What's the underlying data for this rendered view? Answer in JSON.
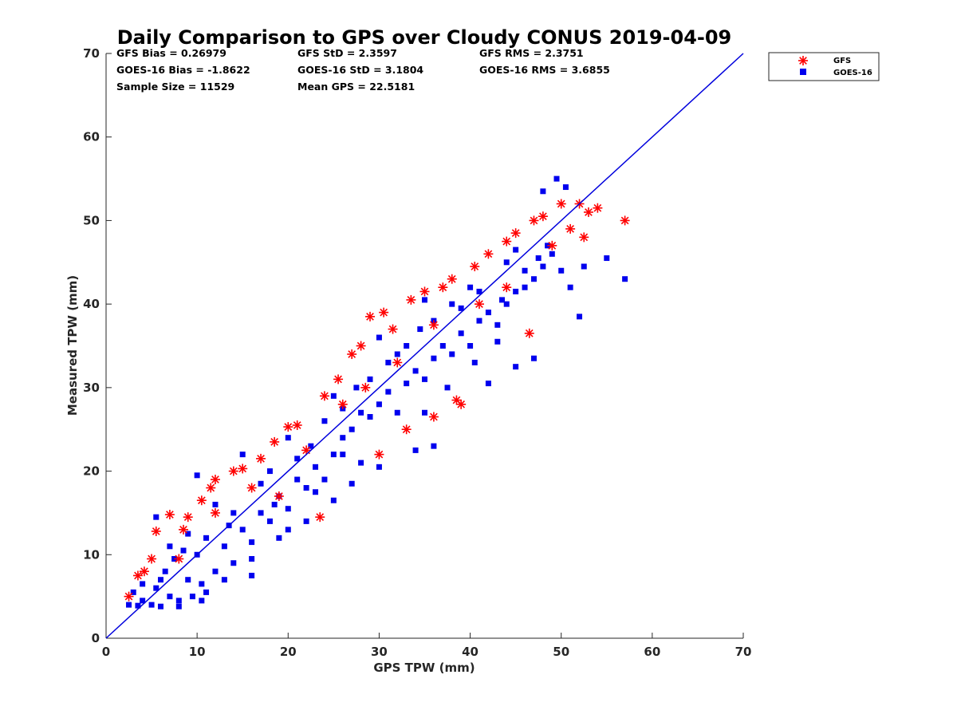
{
  "chart_data": {
    "type": "scatter",
    "title": "Daily Comparison to GPS over Cloudy CONUS 2019-04-09",
    "xlabel": "GPS TPW (mm)",
    "ylabel": "Measured TPW (mm)",
    "xlim": [
      0,
      70
    ],
    "ylim": [
      0,
      70
    ],
    "xticks": [
      "0",
      "10",
      "20",
      "30",
      "40",
      "50",
      "60",
      "70"
    ],
    "yticks": [
      "0",
      "10",
      "20",
      "30",
      "40",
      "50",
      "60",
      "70"
    ],
    "grid": false,
    "legend_position": "outside-top-right",
    "reference_line": {
      "x": [
        0,
        70
      ],
      "y": [
        0,
        70
      ],
      "color": "#0000dd"
    },
    "stats": {
      "gfs_bias": "GFS Bias = 0.26979",
      "gfs_std": "GFS StD = 2.3597",
      "gfs_rms": "GFS RMS = 2.3751",
      "goes_bias": "GOES-16 Bias = -1.8622",
      "goes_std": "GOES-16 StD = 3.1804",
      "goes_rms": "GOES-16 RMS = 3.6855",
      "sample_size": "Sample Size = 11529",
      "mean_gps": "Mean GPS = 22.5181"
    },
    "series": [
      {
        "name": "GFS",
        "marker": "asterisk",
        "color": "#ff0000",
        "points": [
          [
            2.5,
            5.0
          ],
          [
            3.5,
            7.5
          ],
          [
            4.2,
            8.0
          ],
          [
            5.0,
            9.5
          ],
          [
            5.5,
            12.8
          ],
          [
            7.0,
            14.8
          ],
          [
            8.5,
            13.0
          ],
          [
            9.0,
            14.5
          ],
          [
            10.5,
            16.5
          ],
          [
            11.5,
            18.0
          ],
          [
            12.0,
            19.0
          ],
          [
            14.0,
            20.0
          ],
          [
            15.0,
            20.3
          ],
          [
            17.0,
            21.5
          ],
          [
            18.5,
            23.5
          ],
          [
            20.0,
            25.3
          ],
          [
            21.0,
            25.5
          ],
          [
            23.5,
            14.5
          ],
          [
            24.0,
            29.0
          ],
          [
            25.5,
            31.0
          ],
          [
            27.0,
            34.0
          ],
          [
            28.0,
            35.0
          ],
          [
            29.0,
            38.5
          ],
          [
            30.0,
            22.0
          ],
          [
            30.5,
            39.0
          ],
          [
            31.5,
            37.0
          ],
          [
            33.0,
            25.0
          ],
          [
            33.5,
            40.5
          ],
          [
            35.0,
            41.5
          ],
          [
            36.0,
            26.5
          ],
          [
            37.0,
            42.0
          ],
          [
            38.0,
            43.0
          ],
          [
            38.5,
            28.5
          ],
          [
            39.0,
            28.0
          ],
          [
            40.5,
            44.5
          ],
          [
            42.0,
            46.0
          ],
          [
            44.0,
            47.5
          ],
          [
            45.0,
            48.5
          ],
          [
            46.5,
            36.5
          ],
          [
            47.0,
            50.0
          ],
          [
            48.0,
            50.5
          ],
          [
            49.0,
            47.0
          ],
          [
            50.0,
            52.0
          ],
          [
            51.0,
            49.0
          ],
          [
            52.0,
            52.0
          ],
          [
            52.5,
            48.0
          ],
          [
            53.0,
            51.0
          ],
          [
            54.0,
            51.5
          ],
          [
            57.0,
            50.0
          ],
          [
            12.0,
            15.0
          ],
          [
            16.0,
            18.0
          ],
          [
            22.0,
            22.5
          ],
          [
            26.0,
            28.0
          ],
          [
            32.0,
            33.0
          ],
          [
            36.0,
            37.5
          ],
          [
            41.0,
            40.0
          ],
          [
            44.0,
            42.0
          ],
          [
            8.0,
            9.5
          ],
          [
            19.0,
            17.0
          ],
          [
            28.5,
            30.0
          ]
        ]
      },
      {
        "name": "GOES-16",
        "marker": "square",
        "color": "#0000ee",
        "points": [
          [
            2.5,
            4.0
          ],
          [
            3.0,
            5.5
          ],
          [
            4.0,
            4.5
          ],
          [
            5.0,
            4.0
          ],
          [
            5.5,
            6.0
          ],
          [
            6.0,
            3.8
          ],
          [
            6.5,
            8.0
          ],
          [
            7.0,
            5.0
          ],
          [
            7.5,
            9.5
          ],
          [
            8.0,
            4.5
          ],
          [
            9.0,
            7.0
          ],
          [
            9.5,
            5.0
          ],
          [
            10.0,
            10.0
          ],
          [
            10.5,
            6.5
          ],
          [
            11.0,
            12.0
          ],
          [
            12.0,
            8.0
          ],
          [
            13.0,
            11.0
          ],
          [
            14.0,
            9.0
          ],
          [
            15.0,
            13.0
          ],
          [
            16.0,
            11.5
          ],
          [
            17.0,
            15.0
          ],
          [
            18.0,
            14.0
          ],
          [
            19.0,
            17.0
          ],
          [
            20.0,
            15.5
          ],
          [
            21.0,
            19.0
          ],
          [
            22.0,
            18.0
          ],
          [
            23.0,
            20.5
          ],
          [
            24.0,
            19.0
          ],
          [
            25.0,
            22.0
          ],
          [
            26.0,
            24.0
          ],
          [
            27.0,
            25.0
          ],
          [
            28.0,
            27.0
          ],
          [
            29.0,
            26.5
          ],
          [
            30.0,
            28.0
          ],
          [
            31.0,
            29.5
          ],
          [
            32.0,
            27.0
          ],
          [
            33.0,
            30.5
          ],
          [
            34.0,
            32.0
          ],
          [
            35.0,
            31.0
          ],
          [
            36.0,
            33.5
          ],
          [
            37.0,
            35.0
          ],
          [
            38.0,
            34.0
          ],
          [
            39.0,
            36.5
          ],
          [
            40.0,
            35.0
          ],
          [
            41.0,
            38.0
          ],
          [
            42.0,
            39.0
          ],
          [
            43.0,
            37.5
          ],
          [
            44.0,
            40.0
          ],
          [
            45.0,
            41.5
          ],
          [
            46.0,
            42.0
          ],
          [
            47.0,
            43.0
          ],
          [
            48.0,
            44.5
          ],
          [
            49.0,
            46.0
          ],
          [
            50.0,
            44.0
          ],
          [
            50.5,
            54.0
          ],
          [
            49.5,
            55.0
          ],
          [
            48.0,
            53.5
          ],
          [
            51.0,
            42.0
          ],
          [
            52.5,
            44.5
          ],
          [
            55.0,
            45.5
          ],
          [
            57.0,
            43.0
          ],
          [
            52.0,
            38.5
          ],
          [
            47.0,
            33.5
          ],
          [
            45.0,
            32.5
          ],
          [
            43.0,
            35.5
          ],
          [
            36.0,
            23.0
          ],
          [
            34.0,
            22.5
          ],
          [
            30.0,
            20.5
          ],
          [
            27.0,
            18.5
          ],
          [
            25.0,
            16.5
          ],
          [
            22.0,
            14.0
          ],
          [
            19.0,
            12.0
          ],
          [
            16.0,
            9.5
          ],
          [
            13.0,
            7.0
          ],
          [
            10.5,
            4.5
          ],
          [
            8.0,
            3.8
          ],
          [
            5.5,
            14.5
          ],
          [
            10.0,
            19.5
          ],
          [
            15.0,
            22.0
          ],
          [
            20.0,
            24.0
          ],
          [
            25.0,
            29.0
          ],
          [
            30.0,
            36.0
          ],
          [
            35.0,
            40.5
          ],
          [
            40.0,
            42.0
          ],
          [
            45.0,
            46.5
          ],
          [
            12.0,
            16.0
          ],
          [
            18.0,
            20.0
          ],
          [
            24.0,
            26.0
          ],
          [
            32.0,
            34.0
          ],
          [
            38.0,
            40.0
          ],
          [
            44.0,
            45.0
          ],
          [
            7.0,
            11.0
          ],
          [
            9.0,
            12.5
          ],
          [
            14.0,
            15.0
          ],
          [
            17.0,
            18.5
          ],
          [
            21.0,
            21.5
          ],
          [
            26.0,
            27.5
          ],
          [
            29.0,
            31.0
          ],
          [
            31.0,
            33.0
          ],
          [
            33.0,
            35.0
          ],
          [
            36.0,
            38.0
          ],
          [
            39.0,
            39.5
          ],
          [
            41.0,
            41.5
          ],
          [
            46.0,
            44.0
          ],
          [
            48.5,
            47.0
          ],
          [
            11.0,
            5.5
          ],
          [
            20.0,
            13.0
          ],
          [
            28.0,
            21.0
          ],
          [
            35.0,
            27.0
          ],
          [
            42.0,
            30.5
          ],
          [
            26.0,
            22.0
          ],
          [
            23.0,
            17.5
          ],
          [
            16.0,
            7.5
          ],
          [
            6.0,
            7.0
          ],
          [
            4.0,
            6.5
          ],
          [
            3.5,
            3.9
          ],
          [
            8.5,
            10.5
          ],
          [
            13.5,
            13.5
          ],
          [
            18.5,
            16.0
          ],
          [
            22.5,
            23.0
          ],
          [
            27.5,
            30.0
          ],
          [
            34.5,
            37.0
          ],
          [
            37.5,
            30.0
          ],
          [
            40.5,
            33.0
          ],
          [
            43.5,
            40.5
          ],
          [
            47.5,
            45.5
          ]
        ]
      }
    ]
  }
}
